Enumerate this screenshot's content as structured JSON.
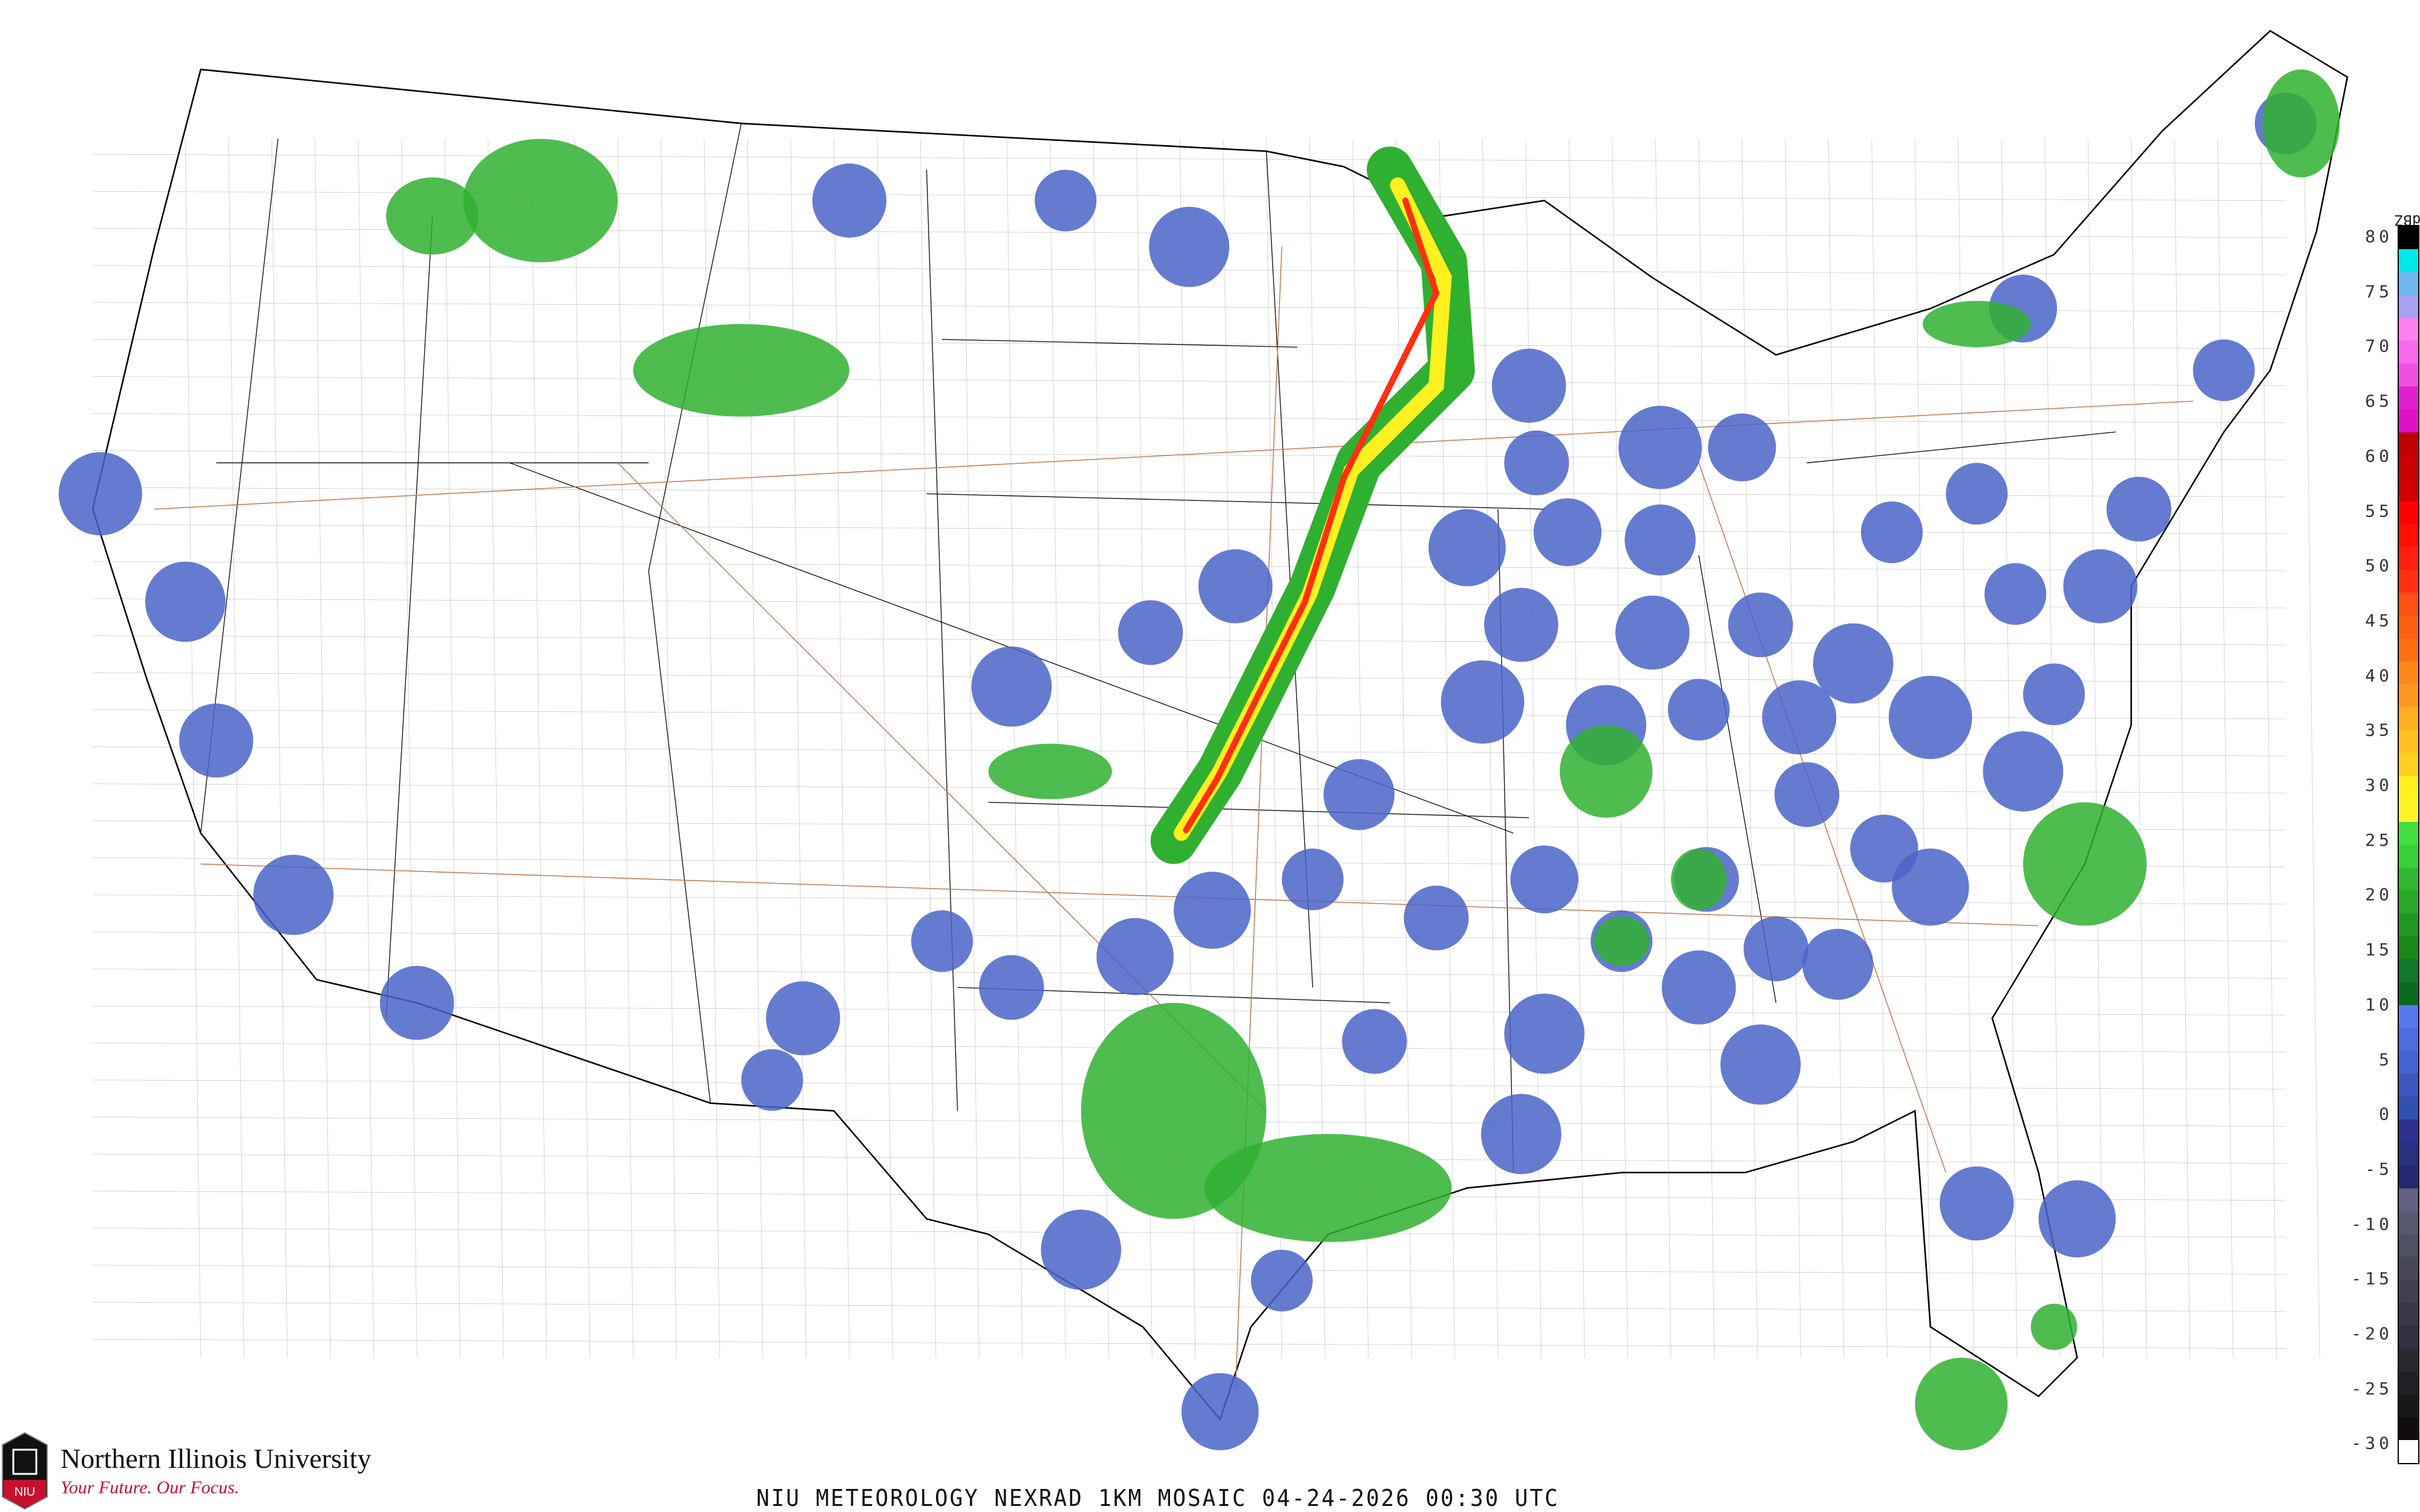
{
  "caption": "NIU METEOROLOGY NEXRAD 1KM MOSAIC  04-24-2026 00:30 UTC",
  "logo": {
    "name": "Northern Illinois University",
    "tagline": "Your Future. Our Focus.",
    "mark": "NIU",
    "color": "#c8102e"
  },
  "legend": {
    "unit": "dBZ",
    "ticks": [
      "80",
      "75",
      "70",
      "65",
      "60",
      "55",
      "50",
      "45",
      "40",
      "35",
      "30",
      "25",
      "20",
      "15",
      "10",
      "5",
      "0",
      "-5",
      "-10",
      "-15",
      "-20",
      "-25",
      "-30"
    ],
    "colors": [
      "#000000",
      "#00e8e8",
      "#70b8f0",
      "#a8a0f0",
      "#ff80f0",
      "#f868e8",
      "#f050e0",
      "#e020d0",
      "#e010c8",
      "#c00000",
      "#c80000",
      "#d00000",
      "#ff0000",
      "#ff1000",
      "#ff2010",
      "#ff3010",
      "#ff5010",
      "#ff6010",
      "#ff7010",
      "#ff8818",
      "#ff9820",
      "#ffb020",
      "#ffc020",
      "#ffd020",
      "#fff020",
      "#fff428",
      "#40e040",
      "#38d038",
      "#30b830",
      "#28a828",
      "#209820",
      "#188818",
      "#107828",
      "#0a6a20",
      "#5878f0",
      "#4c6ce0",
      "#4462d0",
      "#3c58c0",
      "#3050b0",
      "#303090",
      "#283080",
      "#242870",
      "#606080",
      "#585870",
      "#505064",
      "#484858",
      "#404050",
      "#38384a",
      "#303040",
      "#28282e",
      "#202024",
      "#181818",
      "#100c10",
      "#ffffff"
    ]
  },
  "map_colors": {
    "state_lines": "#000000",
    "county_lines": "#c8c8c8",
    "roads": "#c87850",
    "radar_low": "#4a64c8",
    "radar_mid": "#30b030",
    "radar_high": "#ff3010"
  }
}
